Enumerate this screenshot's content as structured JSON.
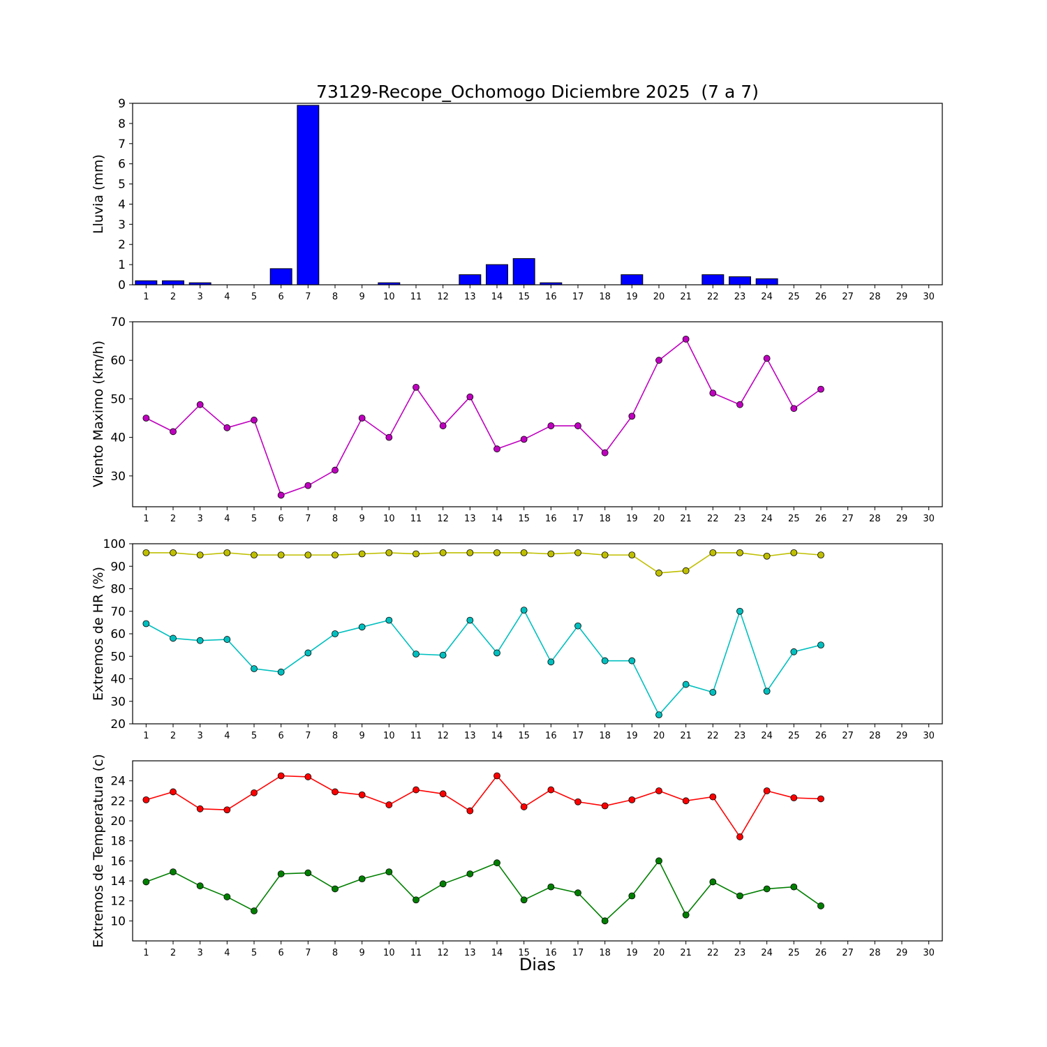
{
  "figure": {
    "title": "73129-Recope_Ochomogo Diciembre 2025  (7 a 7)",
    "xlabel": "Dias",
    "background_color": "#ffffff"
  },
  "chart_data": [
    {
      "name": "lluvia",
      "type": "bar",
      "ylabel": "Lluvia (mm)",
      "x": [
        1,
        2,
        3,
        4,
        5,
        6,
        7,
        8,
        9,
        10,
        11,
        12,
        13,
        14,
        15,
        16,
        17,
        18,
        19,
        20,
        21,
        22,
        23,
        24,
        25,
        26,
        27,
        28,
        29,
        30
      ],
      "values": [
        0.2,
        0.2,
        0.1,
        0,
        0,
        0.8,
        8.9,
        0,
        0,
        0.1,
        0,
        0,
        0.5,
        1.0,
        1.3,
        0.1,
        0,
        0,
        0.5,
        0,
        0,
        0.5,
        0.4,
        0.3,
        0,
        0,
        0,
        0,
        0,
        0
      ],
      "bar_color": "#0000ff",
      "xlim": [
        0.5,
        30.5
      ],
      "ylim": [
        0,
        9
      ],
      "xticks": [
        1,
        2,
        3,
        4,
        5,
        6,
        7,
        8,
        9,
        10,
        11,
        12,
        13,
        14,
        15,
        16,
        17,
        18,
        19,
        20,
        21,
        22,
        23,
        24,
        25,
        26,
        27,
        28,
        29,
        30
      ],
      "yticks": [
        0,
        1,
        2,
        3,
        4,
        5,
        6,
        7,
        8,
        9
      ],
      "grid": false
    },
    {
      "name": "viento-maximo",
      "type": "line",
      "ylabel": "Viento Maximo (km/h)",
      "x": [
        1,
        2,
        3,
        4,
        5,
        6,
        7,
        8,
        9,
        10,
        11,
        12,
        13,
        14,
        15,
        16,
        17,
        18,
        19,
        20,
        21,
        22,
        23,
        24,
        25,
        26
      ],
      "series": [
        {
          "name": "viento_maximo",
          "color": "#bf00bf",
          "values": [
            45,
            41.5,
            48.5,
            42.5,
            44.5,
            25,
            27.5,
            31.5,
            45,
            40,
            53,
            43,
            50.5,
            37,
            39.5,
            43,
            43,
            36,
            45.5,
            60,
            65.5,
            51.5,
            48.5,
            60.5,
            47.5,
            52.5
          ]
        }
      ],
      "xlim": [
        0.5,
        30.5
      ],
      "ylim": [
        22,
        70
      ],
      "xticks": [
        1,
        2,
        3,
        4,
        5,
        6,
        7,
        8,
        9,
        10,
        11,
        12,
        13,
        14,
        15,
        16,
        17,
        18,
        19,
        20,
        21,
        22,
        23,
        24,
        25,
        26,
        27,
        28,
        29,
        30
      ],
      "yticks": [
        30,
        40,
        50,
        60,
        70
      ],
      "grid": false
    },
    {
      "name": "extremos-hr",
      "type": "line",
      "ylabel": "Extremos de HR (%)",
      "x": [
        1,
        2,
        3,
        4,
        5,
        6,
        7,
        8,
        9,
        10,
        11,
        12,
        13,
        14,
        15,
        16,
        17,
        18,
        19,
        20,
        21,
        22,
        23,
        24,
        25,
        26
      ],
      "series": [
        {
          "name": "hr_maxima",
          "color": "#bfbf00",
          "values": [
            96,
            96,
            95,
            96,
            95,
            95,
            95,
            95,
            95.5,
            96,
            95.5,
            96,
            96,
            96,
            96,
            95.5,
            96,
            95,
            95,
            87,
            88,
            96,
            96,
            94.5,
            96,
            95
          ]
        },
        {
          "name": "hr_minima",
          "color": "#00bfbf",
          "values": [
            64.5,
            58,
            57,
            57.5,
            44.5,
            43,
            51.5,
            60,
            63,
            66,
            51,
            50.5,
            66,
            51.5,
            70.5,
            47.5,
            63.5,
            48,
            48,
            24,
            37.5,
            34,
            70,
            34.5,
            52,
            55
          ]
        }
      ],
      "xlim": [
        0.5,
        30.5
      ],
      "ylim": [
        20,
        100
      ],
      "xticks": [
        1,
        2,
        3,
        4,
        5,
        6,
        7,
        8,
        9,
        10,
        11,
        12,
        13,
        14,
        15,
        16,
        17,
        18,
        19,
        20,
        21,
        22,
        23,
        24,
        25,
        26,
        27,
        28,
        29,
        30
      ],
      "yticks": [
        20,
        30,
        40,
        50,
        60,
        70,
        80,
        90,
        100
      ],
      "grid": false
    },
    {
      "name": "extremos-temperatura",
      "type": "line",
      "ylabel": "Extremos de Temperatura (c)",
      "x": [
        1,
        2,
        3,
        4,
        5,
        6,
        7,
        8,
        9,
        10,
        11,
        12,
        13,
        14,
        15,
        16,
        17,
        18,
        19,
        20,
        21,
        22,
        23,
        24,
        25,
        26
      ],
      "series": [
        {
          "name": "temperatura_maxima",
          "color": "#ff0000",
          "values": [
            22.1,
            22.9,
            21.2,
            21.1,
            22.8,
            24.5,
            24.4,
            22.9,
            22.6,
            21.6,
            23.1,
            22.7,
            21.0,
            24.5,
            21.4,
            23.1,
            21.9,
            21.5,
            22.1,
            23.0,
            22.0,
            22.4,
            18.4,
            23.0,
            22.3,
            22.2
          ]
        },
        {
          "name": "temperatura_minima",
          "color": "#007f00",
          "values": [
            13.9,
            14.9,
            13.5,
            12.4,
            11.0,
            14.7,
            14.8,
            13.2,
            14.2,
            14.9,
            12.1,
            13.7,
            14.7,
            15.8,
            12.1,
            13.4,
            12.8,
            10.0,
            12.5,
            16.0,
            10.6,
            13.9,
            12.5,
            13.2,
            13.4,
            11.5
          ]
        }
      ],
      "xlim": [
        0.5,
        30.5
      ],
      "ylim": [
        8,
        26
      ],
      "xticks": [
        1,
        2,
        3,
        4,
        5,
        6,
        7,
        8,
        9,
        10,
        11,
        12,
        13,
        14,
        15,
        16,
        17,
        18,
        19,
        20,
        21,
        22,
        23,
        24,
        25,
        26,
        27,
        28,
        29,
        30
      ],
      "yticks": [
        10,
        12,
        14,
        16,
        18,
        20,
        22,
        24
      ],
      "grid": false
    }
  ]
}
